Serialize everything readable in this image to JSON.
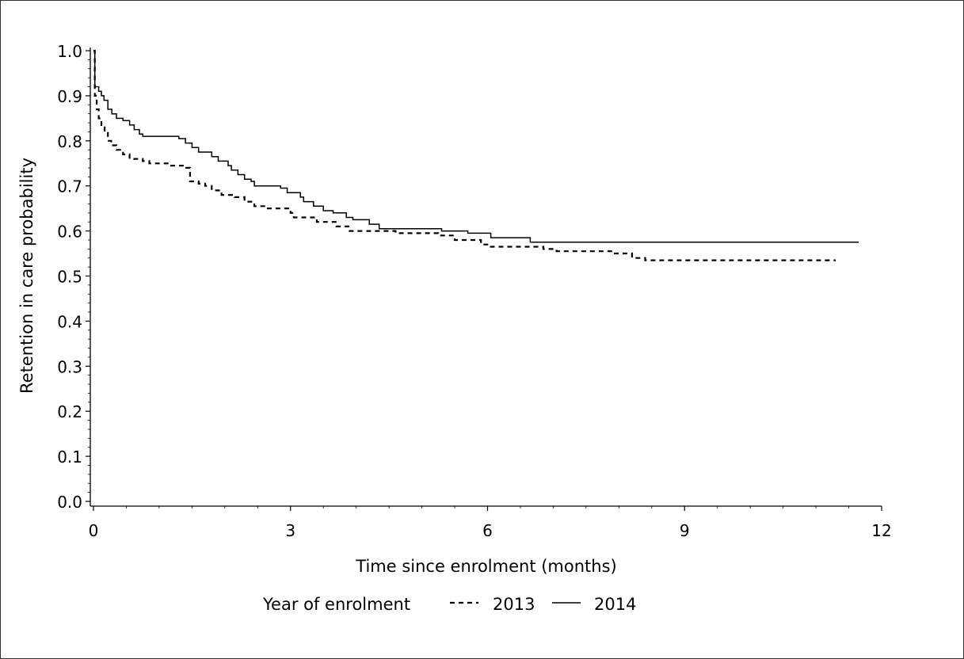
{
  "chart_data": {
    "type": "line",
    "title": "",
    "xlabel": "Time since enrolment (months)",
    "ylabel": "Retention in care probability",
    "xlim": [
      0,
      12
    ],
    "ylim": [
      0,
      1.0
    ],
    "x_ticks": [
      "0",
      "3",
      "6",
      "9",
      "12"
    ],
    "y_ticks": [
      "0.0",
      "0.1",
      "0.2",
      "0.3",
      "0.4",
      "0.5",
      "0.6",
      "0.7",
      "0.8",
      "0.9",
      "1.0"
    ],
    "grid": false,
    "legend": {
      "title": "Year of enrolment",
      "placement": "bottom-center",
      "entries": [
        "2013",
        "2014"
      ]
    },
    "series": [
      {
        "name": "2013",
        "style": "dashed",
        "color": "#000000",
        "points": [
          [
            0,
            1.0
          ],
          [
            0.02,
            0.9
          ],
          [
            0.05,
            0.87
          ],
          [
            0.08,
            0.85
          ],
          [
            0.12,
            0.83
          ],
          [
            0.17,
            0.82
          ],
          [
            0.22,
            0.8
          ],
          [
            0.27,
            0.79
          ],
          [
            0.35,
            0.78
          ],
          [
            0.45,
            0.77
          ],
          [
            0.55,
            0.76
          ],
          [
            0.75,
            0.755
          ],
          [
            0.85,
            0.75
          ],
          [
            1.15,
            0.745
          ],
          [
            1.4,
            0.74
          ],
          [
            1.47,
            0.71
          ],
          [
            1.6,
            0.705
          ],
          [
            1.7,
            0.7
          ],
          [
            1.8,
            0.69
          ],
          [
            1.95,
            0.68
          ],
          [
            2.15,
            0.675
          ],
          [
            2.3,
            0.665
          ],
          [
            2.45,
            0.655
          ],
          [
            2.6,
            0.65
          ],
          [
            3.0,
            0.64
          ],
          [
            3.05,
            0.63
          ],
          [
            3.4,
            0.62
          ],
          [
            3.7,
            0.61
          ],
          [
            3.9,
            0.6
          ],
          [
            4.6,
            0.595
          ],
          [
            5.25,
            0.59
          ],
          [
            5.5,
            0.58
          ],
          [
            5.9,
            0.57
          ],
          [
            6.05,
            0.565
          ],
          [
            6.85,
            0.56
          ],
          [
            7.05,
            0.555
          ],
          [
            7.9,
            0.55
          ],
          [
            8.2,
            0.54
          ],
          [
            8.4,
            0.535
          ],
          [
            11.3,
            0.535
          ]
        ]
      },
      {
        "name": "2014",
        "style": "solid",
        "color": "#000000",
        "points": [
          [
            0,
            1.0
          ],
          [
            0.02,
            0.92
          ],
          [
            0.08,
            0.91
          ],
          [
            0.12,
            0.9
          ],
          [
            0.16,
            0.89
          ],
          [
            0.22,
            0.87
          ],
          [
            0.28,
            0.86
          ],
          [
            0.35,
            0.85
          ],
          [
            0.45,
            0.845
          ],
          [
            0.55,
            0.835
          ],
          [
            0.62,
            0.825
          ],
          [
            0.7,
            0.815
          ],
          [
            0.75,
            0.81
          ],
          [
            1.2,
            0.81
          ],
          [
            1.3,
            0.805
          ],
          [
            1.4,
            0.795
          ],
          [
            1.5,
            0.785
          ],
          [
            1.6,
            0.775
          ],
          [
            1.8,
            0.765
          ],
          [
            1.9,
            0.755
          ],
          [
            2.05,
            0.745
          ],
          [
            2.1,
            0.735
          ],
          [
            2.2,
            0.725
          ],
          [
            2.3,
            0.715
          ],
          [
            2.4,
            0.71
          ],
          [
            2.45,
            0.7
          ],
          [
            2.85,
            0.695
          ],
          [
            2.95,
            0.685
          ],
          [
            3.15,
            0.675
          ],
          [
            3.2,
            0.665
          ],
          [
            3.35,
            0.655
          ],
          [
            3.5,
            0.645
          ],
          [
            3.65,
            0.64
          ],
          [
            3.85,
            0.63
          ],
          [
            3.95,
            0.625
          ],
          [
            4.2,
            0.615
          ],
          [
            4.35,
            0.605
          ],
          [
            5.3,
            0.6
          ],
          [
            5.7,
            0.595
          ],
          [
            6.05,
            0.585
          ],
          [
            6.65,
            0.575
          ],
          [
            11.65,
            0.575
          ]
        ]
      }
    ]
  }
}
